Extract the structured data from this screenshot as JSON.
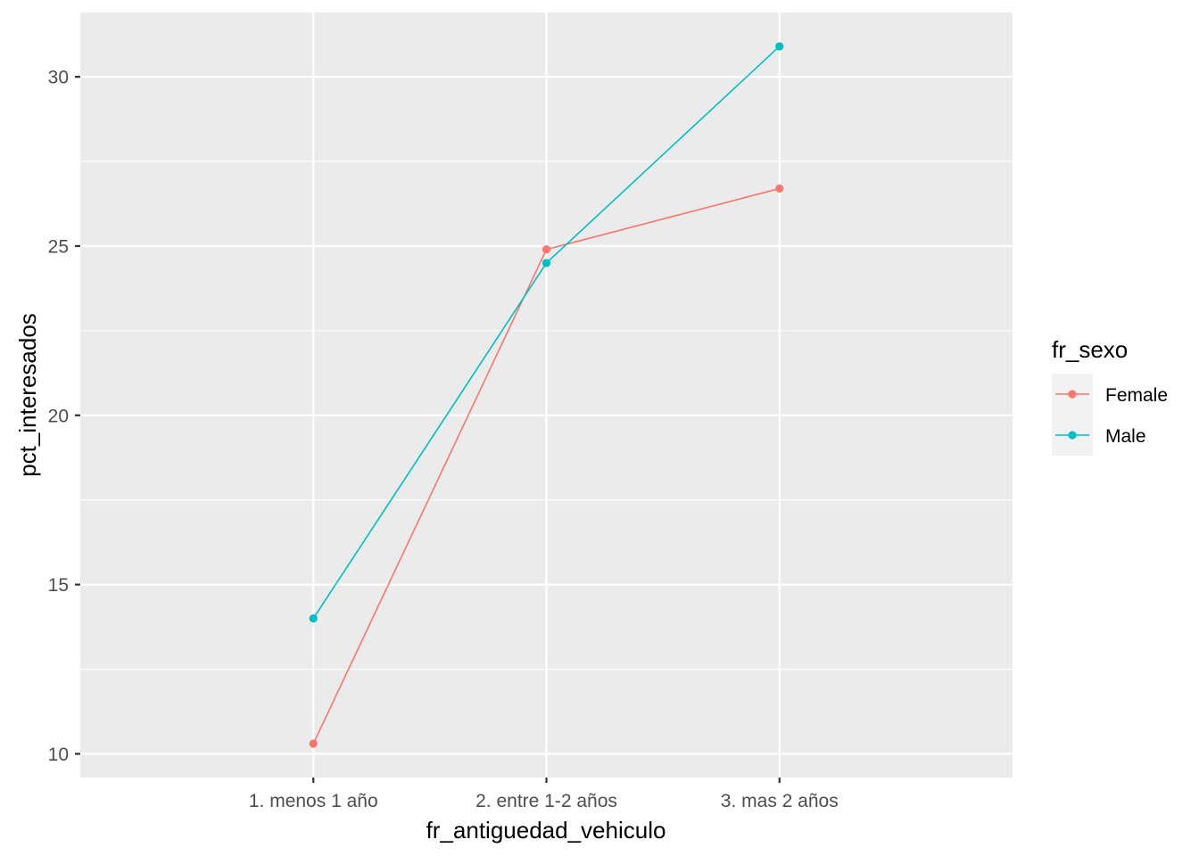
{
  "chart_data": {
    "type": "line",
    "title": "",
    "xlabel": "fr_antiguedad_vehiculo",
    "ylabel": "pct_interesados",
    "categories": [
      "1. menos 1 año",
      "2. entre 1-2 años",
      "3. mas 2 años"
    ],
    "ylim": [
      9.3,
      31.9
    ],
    "yticks": [
      10,
      15,
      20,
      25,
      30
    ],
    "y_minor_gridlines": [
      12.5,
      17.5,
      22.5,
      27.5
    ],
    "grid": true,
    "legend": {
      "title": "fr_sexo",
      "position": "right"
    },
    "series": [
      {
        "name": "Female",
        "color": "#F8766D",
        "values": [
          10.3,
          24.9,
          26.7
        ]
      },
      {
        "name": "Male",
        "color": "#00BFC4",
        "values": [
          14.0,
          24.5,
          30.9
        ]
      }
    ],
    "panel_background": "#EBEBEB",
    "gridline_color": "#FFFFFF"
  }
}
